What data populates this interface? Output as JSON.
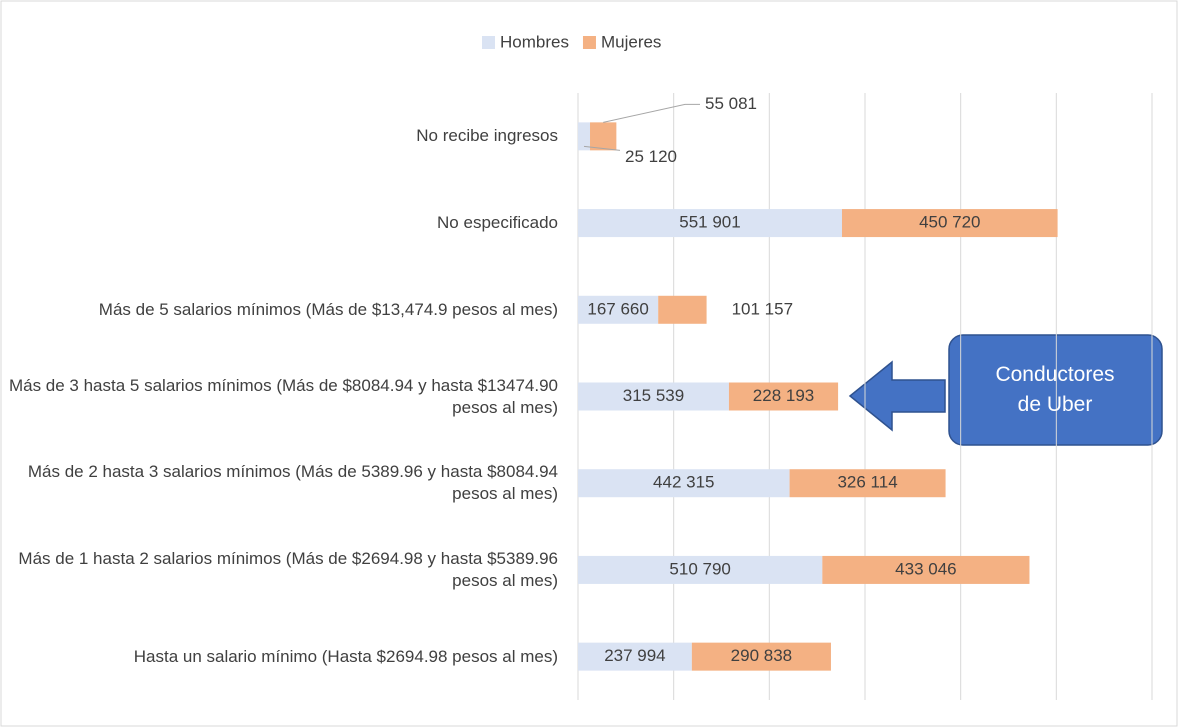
{
  "chart_data": {
    "type": "stacked-barh",
    "categories": [
      "No recibe ingresos",
      "No especificado",
      "Más de 5 salarios mínimos (Más de $13,474.9 pesos al mes)",
      "Más de 3 hasta 5 salarios mínimos (Más de $8084.94 y hasta $13474.90 pesos al mes)",
      "Más de 2 hasta 3 salarios mínimos (Más de 5389.96 y hasta $8084.94 pesos al mes)",
      "Más de 1 hasta 2 salarios mínimos (Más de $2694.98 y hasta $5389.96 pesos al mes)",
      "Hasta un salario mínimo (Hasta $2694.98 pesos al mes)"
    ],
    "series": [
      {
        "name": "Hombres",
        "color": "#dae3f3",
        "values": [
          25120,
          551901,
          167660,
          315539,
          442315,
          510790,
          237994
        ],
        "value_labels": [
          "25 120",
          "551 901",
          "167 660",
          "315 539",
          "442 315",
          "510 790",
          "237 994"
        ]
      },
      {
        "name": "Mujeres",
        "color": "#f4b183",
        "values": [
          55081,
          450720,
          101157,
          228193,
          326114,
          433046,
          290838
        ],
        "value_labels": [
          "55 081",
          "450 720",
          "101 157",
          "228 193",
          "326 114",
          "433 046",
          "290 838"
        ]
      }
    ],
    "xlim": [
      0,
      1200000
    ],
    "xticks": [
      0,
      200000,
      400000,
      600000,
      800000,
      1000000,
      1200000
    ],
    "grid": true,
    "legend": "top",
    "annotation": "Conductores de Uber"
  }
}
